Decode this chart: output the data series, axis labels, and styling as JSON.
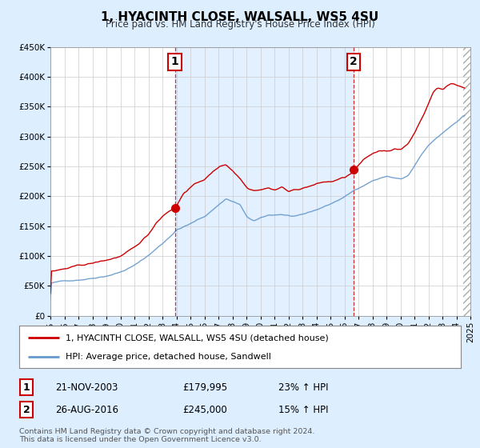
{
  "title": "1, HYACINTH CLOSE, WALSALL, WS5 4SU",
  "subtitle": "Price paid vs. HM Land Registry's House Price Index (HPI)",
  "legend_label1": "1, HYACINTH CLOSE, WALSALL, WS5 4SU (detached house)",
  "legend_label2": "HPI: Average price, detached house, Sandwell",
  "annotation1": {
    "num": "1",
    "date": "21-NOV-2003",
    "price": "£179,995",
    "pct": "23% ↑ HPI",
    "x_year": 2003.9,
    "y_val": 179995
  },
  "annotation2": {
    "num": "2",
    "date": "26-AUG-2016",
    "price": "£245,000",
    "pct": "15% ↑ HPI",
    "x_year": 2016.65,
    "y_val": 245000
  },
  "vline1_x": 2003.9,
  "vline2_x": 2016.65,
  "footer1": "Contains HM Land Registry data © Crown copyright and database right 2024.",
  "footer2": "This data is licensed under the Open Government Licence v3.0.",
  "line1_color": "#cc0000",
  "line2_color": "#6699cc",
  "shade_color": "#ddeeff",
  "background_color": "#ddeeff",
  "plot_bg_color": "#ffffff",
  "ylim": [
    0,
    450000
  ],
  "xlim_start": 1995,
  "xlim_end": 2025,
  "yticks": [
    0,
    50000,
    100000,
    150000,
    200000,
    250000,
    300000,
    350000,
    400000,
    450000
  ],
  "xticks": [
    1995,
    1996,
    1997,
    1998,
    1999,
    2000,
    2001,
    2002,
    2003,
    2004,
    2005,
    2006,
    2007,
    2008,
    2009,
    2010,
    2011,
    2012,
    2013,
    2014,
    2015,
    2016,
    2017,
    2018,
    2019,
    2020,
    2021,
    2022,
    2023,
    2024,
    2025
  ]
}
